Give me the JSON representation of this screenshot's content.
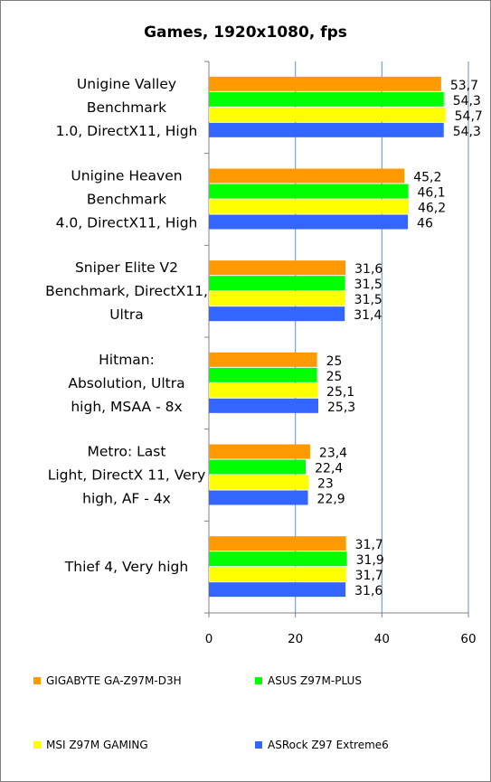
{
  "chart_data": {
    "type": "bar",
    "orientation": "horizontal",
    "title": "Games, 1920x1080, fps",
    "categories": [
      [
        "Unigine Valley",
        "Benchmark",
        "1.0, DirectX11, High"
      ],
      [
        "Unigine Heaven",
        "Benchmark",
        "4.0, DirectX11, High"
      ],
      [
        "Sniper Elite V2",
        "Benchmark, DirectX11,",
        "Ultra"
      ],
      [
        "Hitman:",
        "Absolution, Ultra",
        "high, MSAA - 8x"
      ],
      [
        "Metro: Last",
        "Light, DirectX 11, Very",
        "high, AF - 4x"
      ],
      [
        "Thief 4, Very high"
      ]
    ],
    "series": [
      {
        "name": "GIGABYTE GA-Z97M-D3H",
        "color": "#ff9900",
        "values": [
          53.7,
          45.2,
          31.6,
          25,
          23.4,
          31.7
        ],
        "labels": [
          "53,7",
          "45,2",
          "31,6",
          "25",
          "23,4",
          "31,7"
        ]
      },
      {
        "name": "ASUS Z97M-PLUS",
        "color": "#00ff00",
        "values": [
          54.3,
          46.1,
          31.5,
          25,
          22.4,
          31.9
        ],
        "labels": [
          "54,3",
          "46,1",
          "31,5",
          "25",
          "22,4",
          "31,9"
        ]
      },
      {
        "name": "MSI Z97M GAMING",
        "color": "#ffff00",
        "values": [
          54.7,
          46.2,
          31.5,
          25.1,
          23,
          31.7
        ],
        "labels": [
          "54,7",
          "46,2",
          "31,5",
          "25,1",
          "23",
          "31,7"
        ]
      },
      {
        "name": "ASRock Z97 Extreme6",
        "color": "#3366ff",
        "values": [
          54.3,
          46,
          31.4,
          25.3,
          22.9,
          31.6
        ],
        "labels": [
          "54,3",
          "46",
          "31,4",
          "25,3",
          "22,9",
          "31,6"
        ]
      }
    ],
    "xlim": [
      0,
      60
    ],
    "xticks": [
      0,
      20,
      40,
      60
    ],
    "grid": true,
    "legend_position": "bottom"
  }
}
